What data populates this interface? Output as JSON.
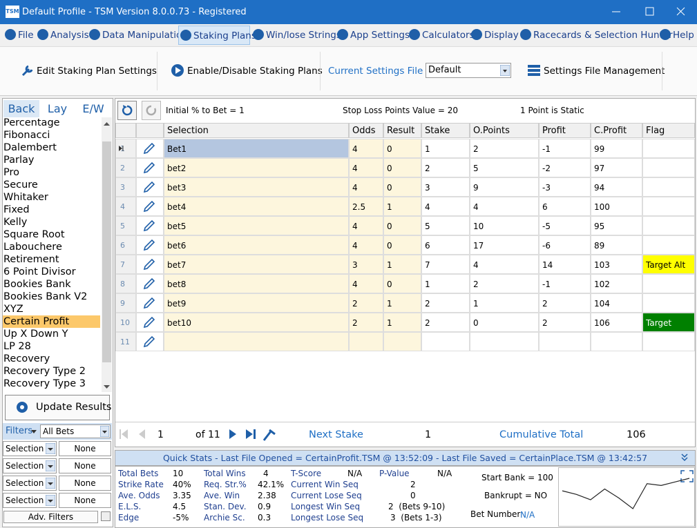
{
  "window": {
    "icon": "TSM",
    "title": "Default Profile - TSM Version 8.0.0.73 - Registered"
  },
  "menu": [
    "File",
    "Analysis",
    "Data Manipulation",
    "Staking Plans",
    "Win/lose Strings",
    "App Settings",
    "Calculators",
    "Display",
    "Racecards & Selection Hunter",
    "Help"
  ],
  "toolbar": {
    "edit": "Edit Staking Plan Settings",
    "enable": "Enable/Disable Staking Plans",
    "settings_label": "Current Settings File :",
    "settings_value": "Default",
    "management": "Settings File Management"
  },
  "tabs": [
    "Back",
    "Lay",
    "E/W"
  ],
  "plans": [
    "Percentage",
    "Fibonacci",
    "Dalembert",
    "Parlay",
    "Pro",
    "Secure",
    "Whitaker",
    "Fixed",
    "Kelly",
    "Square Root",
    "Labouchere",
    "Retirement",
    "6 Point Divisor",
    "Bookies Bank",
    "Bookies Bank V2",
    "XYZ",
    "Certain Profit",
    "Up X Down Y",
    "LP 28",
    "Recovery",
    "Recovery Type 2",
    "Recovery Type 3"
  ],
  "selected_plan": 16,
  "update_button": "Update Results",
  "filters": {
    "label": "Filters",
    "value": "All Bets",
    "rows": [
      [
        "Selection",
        "None"
      ],
      [
        "Selection",
        "None"
      ],
      [
        "Selection",
        "None"
      ],
      [
        "Selection",
        "None"
      ]
    ],
    "advanced": "Adv. Filters"
  },
  "grid_info": [
    "Initial % to Bet = 1",
    "Stop Loss Points Value = 20",
    "1 Point is Static"
  ],
  "table": {
    "columns": [
      "Selection",
      "Odds",
      "Result",
      "Stake",
      "O.Points",
      "Profit",
      "C.Profit",
      "Flag"
    ],
    "rows": [
      [
        "1",
        "Bet1",
        "4",
        "0",
        "1",
        "2",
        "-1",
        "99",
        null
      ],
      [
        "2",
        "bet2",
        "4",
        "0",
        "2",
        "5",
        "-2",
        "97",
        null
      ],
      [
        "3",
        "bet3",
        "4",
        "0",
        "3",
        "9",
        "-3",
        "94",
        null
      ],
      [
        "4",
        "bet4",
        "2.5",
        "1",
        "4",
        "4",
        "6",
        "100",
        null
      ],
      [
        "5",
        "bet5",
        "4",
        "0",
        "5",
        "10",
        "-5",
        "95",
        null
      ],
      [
        "6",
        "bet6",
        "4",
        "0",
        "6",
        "17",
        "-6",
        "89",
        null
      ],
      [
        "7",
        "bet7",
        "3",
        "1",
        "7",
        "4",
        "14",
        "103",
        "Target Alt"
      ],
      [
        "8",
        "bet8",
        "4",
        "0",
        "1",
        "2",
        "-1",
        "102",
        null
      ],
      [
        "9",
        "bet9",
        "2",
        "1",
        "2",
        "1",
        "2",
        "104",
        null
      ],
      [
        "10",
        "bet10",
        "2",
        "1",
        "2",
        "0",
        "2",
        "106",
        "Target"
      ],
      [
        "11",
        null,
        null,
        null,
        null,
        null,
        null,
        null,
        null
      ]
    ],
    "flag_colors": {
      "Target Alt": "#ffff00",
      "Target": "#008000"
    }
  },
  "pager": {
    "page": "1",
    "of": "of 11",
    "next_stake_label": "Next Stake",
    "next_stake": "1",
    "cumulative_label": "Cumulative Total",
    "cumulative": "106"
  },
  "quick_stats": {
    "title": "Quick Stats - Last File Opened = CertainProfit.TSM @ 13:52:09 - Last File Saved = CertainPlace.TSM @ 13:42:57",
    "columns": [
      [
        [
          "Total Bets",
          "10"
        ],
        [
          "Strike Rate",
          "40%"
        ],
        [
          "Ave. Odds",
          "3.35"
        ],
        [
          "E.L.S.",
          "4.5"
        ],
        [
          "Edge",
          "-5%"
        ]
      ],
      [
        [
          "Total Wins",
          "4"
        ],
        [
          "Req. Str.%",
          "42.1%"
        ],
        [
          "Ave. Win",
          "2.38"
        ],
        [
          "Stan. Dev.",
          "0.9"
        ],
        [
          "Archie Sc.",
          "0.3"
        ]
      ],
      [
        [
          "T-Score",
          "N/A"
        ],
        [
          "Current Win Seq",
          "2"
        ],
        [
          "Current Lose Seq",
          "0"
        ],
        [
          "Longest Win Seq",
          "2  (Bets 9-10)"
        ],
        [
          "Longest Lose Seq",
          "3  (Bets 1-3)"
        ]
      ],
      [
        [
          "P-Value",
          "N/A"
        ]
      ]
    ]
  },
  "bank": {
    "start": "Start Bank = 100",
    "bankrupt": "Bankrupt = NO",
    "bet_label": "Bet Number",
    "bet_value": "N/A"
  }
}
